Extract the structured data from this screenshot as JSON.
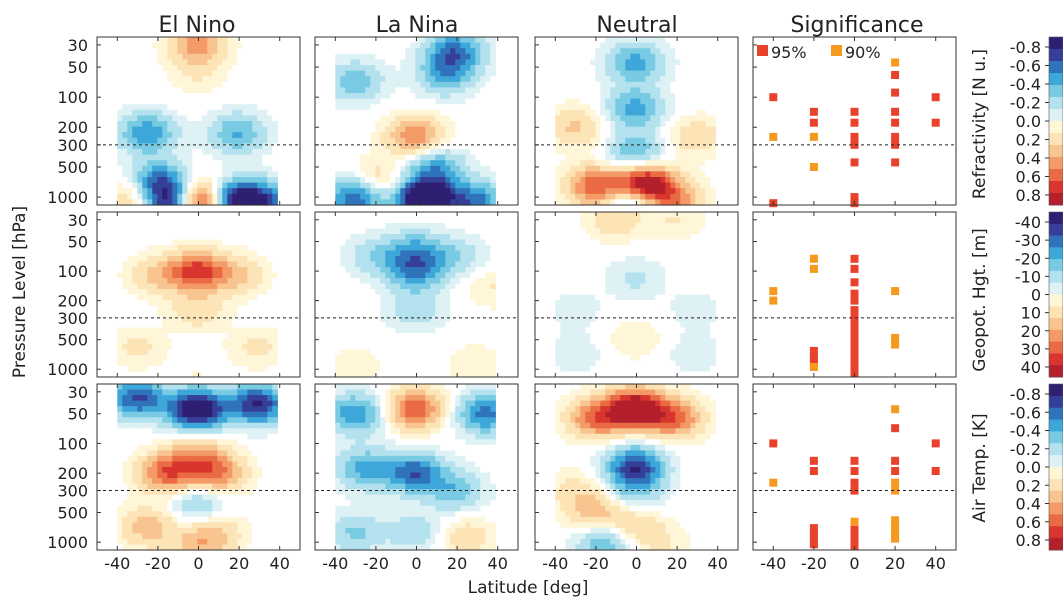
{
  "chart_data": {
    "type": "heatmap",
    "column_titles": [
      "El Nino",
      "La Nina",
      "Neutral",
      "Significance"
    ],
    "xlabel": "Latitude [deg]",
    "ylabel": "Pressure Level [hPa]",
    "x_ticks": [
      -40,
      -20,
      0,
      20,
      40
    ],
    "xlim": [
      -50,
      50
    ],
    "y_ticks": [
      30,
      50,
      100,
      200,
      300,
      500,
      1000
    ],
    "y_tick_labels": [
      "30",
      "50",
      "100",
      "200",
      "300",
      "500",
      "1000"
    ],
    "ylim": [
      25,
      1200
    ],
    "y_scale": "log",
    "y_reversed": true,
    "reference_line_hpa": 300,
    "significance_legend": [
      {
        "label": "95%",
        "color": "#e8412c"
      },
      {
        "label": "90%",
        "color": "#f59a1e"
      }
    ],
    "rows": [
      {
        "variable": "Refractivity [N u.]",
        "colorbar_ticks": [
          "-0.8",
          "-0.6",
          "-0.4",
          "-0.2",
          "0.0",
          "0.2",
          "0.4",
          "0.6",
          "0.8"
        ],
        "scale": 0.8,
        "panels": [
          {
            "bumps": [
              [
                0,
                30,
                0.4
              ],
              [
                -25,
                230,
                -0.45
              ],
              [
                20,
                230,
                -0.35
              ],
              [
                -20,
                700,
                -0.5
              ],
              [
                -12,
                1100,
                -0.9
              ],
              [
                0,
                1100,
                0.95
              ],
              [
                20,
                1100,
                -0.9
              ],
              [
                35,
                1100,
                -0.4
              ],
              [
                -30,
                1000,
                0.3
              ],
              [
                0,
                60,
                0.1
              ]
            ]
          },
          {
            "bumps": [
              [
                20,
                35,
                -0.5
              ],
              [
                15,
                60,
                -0.35
              ],
              [
                -30,
                70,
                -0.3
              ],
              [
                0,
                250,
                0.45
              ],
              [
                10,
                500,
                -0.4
              ],
              [
                -20,
                700,
                0.25
              ],
              [
                -30,
                1000,
                -0.6
              ],
              [
                5,
                1050,
                -1.1
              ],
              [
                30,
                1100,
                -0.5
              ]
            ]
          },
          {
            "bumps": [
              [
                0,
                45,
                -0.4
              ],
              [
                0,
                130,
                -0.4
              ],
              [
                -30,
                200,
                0.25
              ],
              [
                30,
                250,
                0.2
              ],
              [
                0,
                360,
                -0.35
              ],
              [
                5,
                760,
                0.95
              ],
              [
                -20,
                780,
                0.55
              ],
              [
                0,
                1100,
                -0.45
              ],
              [
                20,
                1100,
                0.4
              ]
            ]
          }
        ],
        "significance": [
          {
            "lat": -40,
            "p": 100,
            "level": 95
          },
          {
            "lat": -40,
            "p": 250,
            "level": 90
          },
          {
            "lat": -40,
            "p": 1150,
            "level": 95
          },
          {
            "lat": -20,
            "p": 140,
            "level": 95
          },
          {
            "lat": -20,
            "p": 180,
            "level": 95
          },
          {
            "lat": -20,
            "p": 250,
            "level": 90
          },
          {
            "lat": -20,
            "p": 500,
            "level": 90
          },
          {
            "lat": 0,
            "p": 140,
            "level": 95
          },
          {
            "lat": 0,
            "p": 180,
            "level": 95
          },
          {
            "lat": 0,
            "p": 250,
            "level": 95
          },
          {
            "lat": 0,
            "p": 300,
            "level": 95
          },
          {
            "lat": 0,
            "p": 450,
            "level": 95
          },
          {
            "lat": 0,
            "p": 1000,
            "level": 95
          },
          {
            "lat": 0,
            "p": 1150,
            "level": 95
          },
          {
            "lat": 20,
            "p": 45,
            "level": 90
          },
          {
            "lat": 20,
            "p": 60,
            "level": 95
          },
          {
            "lat": 20,
            "p": 90,
            "level": 95
          },
          {
            "lat": 20,
            "p": 140,
            "level": 95
          },
          {
            "lat": 20,
            "p": 180,
            "level": 95
          },
          {
            "lat": 20,
            "p": 250,
            "level": 95
          },
          {
            "lat": 20,
            "p": 300,
            "level": 95
          },
          {
            "lat": 20,
            "p": 450,
            "level": 95
          },
          {
            "lat": 40,
            "p": 100,
            "level": 95
          },
          {
            "lat": 40,
            "p": 180,
            "level": 95
          }
        ]
      },
      {
        "variable": "Geopot. Hgt. [m]",
        "colorbar_ticks": [
          "-40",
          "-30",
          "-20",
          "-10",
          "0",
          "10",
          "20",
          "30",
          "40"
        ],
        "scale": 40,
        "panels": [
          {
            "bumps": [
              [
                0,
                100,
                30
              ],
              [
                -20,
                110,
                12
              ],
              [
                20,
                110,
                12
              ],
              [
                0,
                250,
                10
              ],
              [
                -30,
                600,
                7
              ],
              [
                30,
                600,
                7
              ],
              [
                0,
                1100,
                2
              ]
            ]
          },
          {
            "bumps": [
              [
                0,
                100,
                -22
              ],
              [
                0,
                60,
                -15
              ],
              [
                -20,
                70,
                -10
              ],
              [
                20,
                70,
                -10
              ],
              [
                0,
                250,
                -10
              ],
              [
                30,
                900,
                5
              ],
              [
                -30,
                900,
                4
              ],
              [
                40,
                150,
                6
              ]
            ]
          },
          {
            "bumps": [
              [
                -10,
                30,
                10
              ],
              [
                20,
                30,
                6
              ],
              [
                0,
                120,
                -7
              ],
              [
                -30,
                250,
                -4
              ],
              [
                30,
                250,
                -4
              ],
              [
                0,
                500,
                5
              ],
              [
                -30,
                700,
                -5
              ],
              [
                30,
                700,
                -5
              ]
            ]
          }
        ],
        "significance": [
          {
            "lat": -40,
            "p": 160,
            "level": 90
          },
          {
            "lat": -40,
            "p": 200,
            "level": 90
          },
          {
            "lat": -20,
            "p": 75,
            "level": 90
          },
          {
            "lat": -20,
            "p": 95,
            "level": 90
          },
          {
            "lat": -20,
            "p": 650,
            "level": 95
          },
          {
            "lat": -20,
            "p": 750,
            "level": 95
          },
          {
            "lat": -20,
            "p": 850,
            "level": 95
          },
          {
            "lat": -20,
            "p": 950,
            "level": 90
          },
          {
            "lat": 0,
            "p": 75,
            "level": 95
          },
          {
            "lat": 0,
            "p": 95,
            "level": 95
          },
          {
            "lat": 0,
            "p": 130,
            "level": 95
          },
          {
            "lat": 0,
            "p": 170,
            "level": 95
          },
          {
            "lat": 0,
            "p": 200,
            "level": 95
          },
          {
            "lat": 0,
            "p": 250,
            "level": 95
          },
          {
            "lat": 0,
            "p": 300,
            "level": 95
          },
          {
            "lat": 0,
            "p": 350,
            "level": 95
          },
          {
            "lat": 0,
            "p": 420,
            "level": 95
          },
          {
            "lat": 0,
            "p": 500,
            "level": 95
          },
          {
            "lat": 0,
            "p": 600,
            "level": 95
          },
          {
            "lat": 0,
            "p": 700,
            "level": 95
          },
          {
            "lat": 0,
            "p": 800,
            "level": 95
          },
          {
            "lat": 0,
            "p": 900,
            "level": 95
          },
          {
            "lat": 0,
            "p": 1000,
            "level": 95
          },
          {
            "lat": 0,
            "p": 1100,
            "level": 95
          },
          {
            "lat": 20,
            "p": 160,
            "level": 90
          },
          {
            "lat": 20,
            "p": 480,
            "level": 90
          },
          {
            "lat": 20,
            "p": 560,
            "level": 90
          }
        ]
      },
      {
        "variable": "Air Temp. [K]",
        "colorbar_ticks": [
          "-0.8",
          "-0.6",
          "-0.4",
          "-0.2",
          "0.0",
          "0.2",
          "0.4",
          "0.6",
          "0.8"
        ],
        "scale": 0.8,
        "panels": [
          {
            "bumps": [
              [
                0,
                45,
                -0.9
              ],
              [
                -30,
                35,
                -0.6
              ],
              [
                30,
                40,
                -0.7
              ],
              [
                -15,
                200,
                0.55
              ],
              [
                10,
                200,
                0.45
              ],
              [
                0,
                130,
                0.3
              ],
              [
                0,
                400,
                -0.25
              ],
              [
                -25,
                700,
                0.3
              ],
              [
                10,
                800,
                0.2
              ],
              [
                0,
                1100,
                0.25
              ]
            ]
          },
          {
            "bumps": [
              [
                0,
                45,
                0.55
              ],
              [
                -30,
                50,
                -0.45
              ],
              [
                35,
                50,
                -0.5
              ],
              [
                0,
                200,
                -0.55
              ],
              [
                -25,
                180,
                -0.4
              ],
              [
                20,
                300,
                -0.3
              ],
              [
                0,
                800,
                -0.2
              ],
              [
                -30,
                800,
                -0.25
              ],
              [
                25,
                900,
                0.2
              ]
            ]
          },
          {
            "bumps": [
              [
                0,
                45,
                0.9
              ],
              [
                -20,
                55,
                0.5
              ],
              [
                20,
                55,
                0.5
              ],
              [
                0,
                150,
                -0.3
              ],
              [
                0,
                200,
                -0.45
              ],
              [
                -30,
                300,
                0.15
              ],
              [
                0,
                350,
                -0.15
              ],
              [
                -20,
                500,
                0.3
              ],
              [
                0,
                700,
                0.25
              ],
              [
                -15,
                1000,
                -0.35
              ],
              [
                15,
                1100,
                0.1
              ]
            ]
          }
        ],
        "significance": [
          {
            "lat": -40,
            "p": 100,
            "level": 95
          },
          {
            "lat": -40,
            "p": 250,
            "level": 90
          },
          {
            "lat": -20,
            "p": 150,
            "level": 95
          },
          {
            "lat": -20,
            "p": 190,
            "level": 95
          },
          {
            "lat": -20,
            "p": 720,
            "level": 95
          },
          {
            "lat": -20,
            "p": 820,
            "level": 95
          },
          {
            "lat": -20,
            "p": 920,
            "level": 95
          },
          {
            "lat": -20,
            "p": 1050,
            "level": 95
          },
          {
            "lat": 0,
            "p": 150,
            "level": 95
          },
          {
            "lat": 0,
            "p": 190,
            "level": 95
          },
          {
            "lat": 0,
            "p": 250,
            "level": 95
          },
          {
            "lat": 0,
            "p": 300,
            "level": 95
          },
          {
            "lat": 0,
            "p": 620,
            "level": 90
          },
          {
            "lat": 0,
            "p": 750,
            "level": 95
          },
          {
            "lat": 0,
            "p": 850,
            "level": 95
          },
          {
            "lat": 0,
            "p": 950,
            "level": 95
          },
          {
            "lat": 0,
            "p": 1100,
            "level": 95
          },
          {
            "lat": 20,
            "p": 45,
            "level": 90
          },
          {
            "lat": 20,
            "p": 70,
            "level": 95
          },
          {
            "lat": 20,
            "p": 150,
            "level": 95
          },
          {
            "lat": 20,
            "p": 190,
            "level": 95
          },
          {
            "lat": 20,
            "p": 250,
            "level": 90
          },
          {
            "lat": 20,
            "p": 300,
            "level": 90
          },
          {
            "lat": 20,
            "p": 600,
            "level": 90
          },
          {
            "lat": 20,
            "p": 700,
            "level": 90
          },
          {
            "lat": 20,
            "p": 800,
            "level": 90
          },
          {
            "lat": 20,
            "p": 920,
            "level": 90
          },
          {
            "lat": 40,
            "p": 100,
            "level": 95
          },
          {
            "lat": 40,
            "p": 190,
            "level": 95
          }
        ]
      }
    ],
    "colormap": [
      "#b41f2c",
      "#d8352e",
      "#ea6a43",
      "#f39a66",
      "#f8c48f",
      "#fce4b6",
      "#fff6d8",
      "#def2f6",
      "#b3e2ee",
      "#79cbe3",
      "#3ea7d9",
      "#2f73bb",
      "#353f98",
      "#2f1f72"
    ]
  }
}
